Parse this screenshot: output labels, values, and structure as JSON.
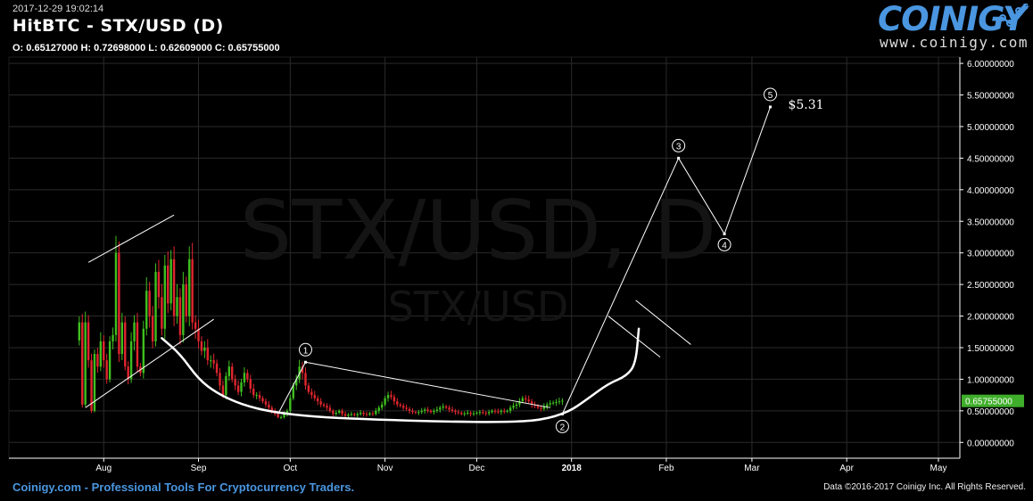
{
  "header": {
    "timestamp": "2017-12-29 19:02:14",
    "title": "HitBTC - STX/USD (D)",
    "ohlc": "O: 0.65127000 H: 0.72698000 L: 0.62609000 C: 0.65755000"
  },
  "logo": {
    "name": "COINIGY",
    "url": "www.coinigy.com",
    "icon": "trend-line-icon"
  },
  "watermark": {
    "line1": "STX/USD, D",
    "line2": "STX/USD"
  },
  "footer": {
    "left": "Coinigy.com - Professional Tools For Cryptocurrency Traders.",
    "right": "Data ©2016-2017 Coinigy Inc. All Rights Reserved."
  },
  "colors": {
    "up": "#3fbf1f",
    "down": "#e0262e",
    "grid": "#2a2a2a",
    "price_tag": "#3fae2a",
    "logo": "#4a96e0"
  },
  "chart_data": {
    "type": "candlestick",
    "title": "HitBTC - STX/USD (D)",
    "xlabel": "",
    "ylabel": "",
    "ylim": [
      -0.25,
      6.1
    ],
    "grid": true,
    "y_ticks": [
      "0.00000000",
      "0.50000000",
      "1.00000000",
      "1.50000000",
      "2.00000000",
      "2.50000000",
      "3.00000000",
      "3.50000000",
      "4.00000000",
      "4.50000000",
      "5.00000000",
      "5.50000000",
      "6.00000000"
    ],
    "x_ticks": [
      {
        "label": "Aug",
        "date": "2017-08-01"
      },
      {
        "label": "Sep",
        "date": "2017-09-01"
      },
      {
        "label": "Oct",
        "date": "2017-10-01"
      },
      {
        "label": "Nov",
        "date": "2017-11-01"
      },
      {
        "label": "Dec",
        "date": "2017-12-01"
      },
      {
        "label": "2018",
        "date": "2018-01-01"
      },
      {
        "label": "Feb",
        "date": "2018-02-01"
      },
      {
        "label": "Mar",
        "date": "2018-03-01"
      },
      {
        "label": "Apr",
        "date": "2018-04-01"
      },
      {
        "label": "May",
        "date": "2018-05-01"
      }
    ],
    "xlim": [
      "2017-07-01",
      "2018-05-08"
    ],
    "last_price": "0.65755000",
    "price_series": [
      [
        "2017-07-24",
        1.9
      ],
      [
        "2017-07-25",
        0.6
      ],
      [
        "2017-07-26",
        1.9
      ],
      [
        "2017-07-27",
        1.3
      ],
      [
        "2017-07-28",
        0.5
      ],
      [
        "2017-07-29",
        1.4
      ],
      [
        "2017-07-30",
        1.2
      ],
      [
        "2017-07-31",
        1.6
      ],
      [
        "2017-08-01",
        1.3
      ],
      [
        "2017-08-02",
        1.0
      ],
      [
        "2017-08-03",
        1.6
      ],
      [
        "2017-08-04",
        1.7
      ],
      [
        "2017-08-05",
        3.0
      ],
      [
        "2017-08-06",
        1.4
      ],
      [
        "2017-08-07",
        1.9
      ],
      [
        "2017-08-08",
        1.2
      ],
      [
        "2017-08-09",
        1.0
      ],
      [
        "2017-08-10",
        1.6
      ],
      [
        "2017-08-11",
        1.9
      ],
      [
        "2017-08-12",
        1.2
      ],
      [
        "2017-08-13",
        1.1
      ],
      [
        "2017-08-14",
        1.8
      ],
      [
        "2017-08-15",
        2.4
      ],
      [
        "2017-08-16",
        2.0
      ],
      [
        "2017-08-17",
        1.6
      ],
      [
        "2017-08-18",
        2.7
      ],
      [
        "2017-08-19",
        2.3
      ],
      [
        "2017-08-20",
        1.8
      ],
      [
        "2017-08-21",
        2.8
      ],
      [
        "2017-08-22",
        2.2
      ],
      [
        "2017-08-23",
        2.9
      ],
      [
        "2017-08-24",
        2.0
      ],
      [
        "2017-08-25",
        2.3
      ],
      [
        "2017-08-26",
        1.7
      ],
      [
        "2017-08-27",
        2.5
      ],
      [
        "2017-08-28",
        2.0
      ],
      [
        "2017-08-29",
        2.9
      ],
      [
        "2017-08-30",
        1.9
      ],
      [
        "2017-08-31",
        1.8
      ],
      [
        "2017-09-01",
        1.6
      ],
      [
        "2017-09-02",
        1.45
      ],
      [
        "2017-09-03",
        1.5
      ],
      [
        "2017-09-04",
        1.3
      ],
      [
        "2017-09-05",
        1.3
      ],
      [
        "2017-09-06",
        1.25
      ],
      [
        "2017-09-07",
        1.1
      ],
      [
        "2017-09-08",
        0.9
      ],
      [
        "2017-09-09",
        0.75
      ],
      [
        "2017-09-10",
        1.05
      ],
      [
        "2017-09-11",
        1.2
      ],
      [
        "2017-09-12",
        1.0
      ],
      [
        "2017-09-13",
        0.9
      ],
      [
        "2017-09-14",
        0.8
      ],
      [
        "2017-09-15",
        0.95
      ],
      [
        "2017-09-16",
        1.1
      ],
      [
        "2017-09-17",
        1.0
      ],
      [
        "2017-09-18",
        0.85
      ],
      [
        "2017-09-19",
        0.75
      ],
      [
        "2017-09-20",
        0.75
      ],
      [
        "2017-09-21",
        0.7
      ],
      [
        "2017-09-22",
        0.65
      ],
      [
        "2017-09-23",
        0.6
      ],
      [
        "2017-09-24",
        0.55
      ],
      [
        "2017-09-25",
        0.5
      ],
      [
        "2017-09-26",
        0.45
      ],
      [
        "2017-09-27",
        0.4
      ],
      [
        "2017-09-28",
        0.4
      ],
      [
        "2017-09-29",
        0.45
      ],
      [
        "2017-09-30",
        0.5
      ],
      [
        "2017-10-01",
        0.7
      ],
      [
        "2017-10-02",
        0.9
      ],
      [
        "2017-10-03",
        1.0
      ],
      [
        "2017-10-04",
        1.2
      ],
      [
        "2017-10-05",
        1.1
      ],
      [
        "2017-10-06",
        0.9
      ],
      [
        "2017-10-07",
        0.8
      ],
      [
        "2017-10-08",
        0.75
      ],
      [
        "2017-10-09",
        0.7
      ],
      [
        "2017-10-10",
        0.65
      ],
      [
        "2017-10-11",
        0.6
      ],
      [
        "2017-10-12",
        0.58
      ],
      [
        "2017-10-13",
        0.55
      ],
      [
        "2017-10-14",
        0.5
      ],
      [
        "2017-10-15",
        0.45
      ],
      [
        "2017-10-16",
        0.47
      ],
      [
        "2017-10-17",
        0.5
      ],
      [
        "2017-10-18",
        0.45
      ],
      [
        "2017-10-19",
        0.42
      ],
      [
        "2017-10-20",
        0.44
      ],
      [
        "2017-10-21",
        0.45
      ],
      [
        "2017-10-22",
        0.43
      ],
      [
        "2017-10-23",
        0.45
      ],
      [
        "2017-10-24",
        0.47
      ],
      [
        "2017-10-25",
        0.45
      ],
      [
        "2017-10-26",
        0.44
      ],
      [
        "2017-10-27",
        0.46
      ],
      [
        "2017-10-28",
        0.45
      ],
      [
        "2017-10-29",
        0.5
      ],
      [
        "2017-10-30",
        0.55
      ],
      [
        "2017-10-31",
        0.6
      ],
      [
        "2017-11-01",
        0.7
      ],
      [
        "2017-11-02",
        0.75
      ],
      [
        "2017-11-03",
        0.72
      ],
      [
        "2017-11-04",
        0.65
      ],
      [
        "2017-11-05",
        0.6
      ],
      [
        "2017-11-06",
        0.58
      ],
      [
        "2017-11-07",
        0.55
      ],
      [
        "2017-11-08",
        0.53
      ],
      [
        "2017-11-09",
        0.5
      ],
      [
        "2017-11-10",
        0.48
      ],
      [
        "2017-11-11",
        0.47
      ],
      [
        "2017-11-12",
        0.48
      ],
      [
        "2017-11-13",
        0.5
      ],
      [
        "2017-11-14",
        0.52
      ],
      [
        "2017-11-15",
        0.5
      ],
      [
        "2017-11-16",
        0.48
      ],
      [
        "2017-11-17",
        0.5
      ],
      [
        "2017-11-18",
        0.52
      ],
      [
        "2017-11-19",
        0.55
      ],
      [
        "2017-11-20",
        0.57
      ],
      [
        "2017-11-21",
        0.55
      ],
      [
        "2017-11-22",
        0.52
      ],
      [
        "2017-11-23",
        0.5
      ],
      [
        "2017-11-24",
        0.48
      ],
      [
        "2017-11-25",
        0.47
      ],
      [
        "2017-11-26",
        0.45
      ],
      [
        "2017-11-27",
        0.46
      ],
      [
        "2017-11-28",
        0.47
      ],
      [
        "2017-11-29",
        0.45
      ],
      [
        "2017-11-30",
        0.46
      ],
      [
        "2017-12-01",
        0.47
      ],
      [
        "2017-12-02",
        0.48
      ],
      [
        "2017-12-03",
        0.47
      ],
      [
        "2017-12-04",
        0.46
      ],
      [
        "2017-12-05",
        0.48
      ],
      [
        "2017-12-06",
        0.5
      ],
      [
        "2017-12-07",
        0.49
      ],
      [
        "2017-12-08",
        0.48
      ],
      [
        "2017-12-09",
        0.5
      ],
      [
        "2017-12-10",
        0.49
      ],
      [
        "2017-12-11",
        0.5
      ],
      [
        "2017-12-12",
        0.55
      ],
      [
        "2017-12-13",
        0.58
      ],
      [
        "2017-12-14",
        0.6
      ],
      [
        "2017-12-15",
        0.65
      ],
      [
        "2017-12-16",
        0.7
      ],
      [
        "2017-12-17",
        0.68
      ],
      [
        "2017-12-18",
        0.65
      ],
      [
        "2017-12-19",
        0.6
      ],
      [
        "2017-12-20",
        0.58
      ],
      [
        "2017-12-21",
        0.55
      ],
      [
        "2017-12-22",
        0.53
      ],
      [
        "2017-12-23",
        0.57
      ],
      [
        "2017-12-24",
        0.6
      ],
      [
        "2017-12-25",
        0.62
      ],
      [
        "2017-12-26",
        0.63
      ],
      [
        "2017-12-27",
        0.64
      ],
      [
        "2017-12-28",
        0.65
      ],
      [
        "2017-12-29",
        0.66
      ]
    ],
    "wave_points": [
      {
        "label": "1",
        "date": "2017-10-06",
        "price": 1.27
      },
      {
        "label": "2",
        "date": "2017-12-29",
        "price": 0.45
      },
      {
        "label": "3",
        "date": "2018-02-05",
        "price": 4.5
      },
      {
        "label": "4",
        "date": "2018-02-20",
        "price": 3.3
      },
      {
        "label": "5",
        "date": "2018-03-07",
        "price": 5.31
      }
    ],
    "target_label": "$5.31",
    "trendlines": [
      [
        [
          "2017-07-27",
          2.85
        ],
        [
          "2017-08-24",
          3.6
        ]
      ],
      [
        [
          "2017-07-26",
          0.55
        ],
        [
          "2017-09-06",
          1.95
        ]
      ],
      [
        [
          "2017-10-06",
          1.27
        ],
        [
          "2017-12-25",
          0.55
        ]
      ],
      [
        [
          "2017-09-27",
          0.45
        ],
        [
          "2017-10-06",
          1.27
        ]
      ],
      [
        [
          "2018-01-13",
          2.0
        ],
        [
          "2018-01-30",
          1.35
        ]
      ],
      [
        [
          "2018-01-22",
          2.25
        ],
        [
          "2018-02-09",
          1.55
        ]
      ]
    ],
    "cup_curve": [
      [
        "2017-08-20",
        1.65
      ],
      [
        "2017-08-26",
        1.4
      ],
      [
        "2017-09-01",
        1.0
      ],
      [
        "2017-09-07",
        0.78
      ],
      [
        "2017-09-15",
        0.6
      ],
      [
        "2017-09-25",
        0.48
      ],
      [
        "2017-10-10",
        0.4
      ],
      [
        "2017-10-30",
        0.36
      ],
      [
        "2017-11-20",
        0.33
      ],
      [
        "2017-12-10",
        0.32
      ],
      [
        "2017-12-22",
        0.35
      ],
      [
        "2017-12-31",
        0.48
      ],
      [
        "2018-01-06",
        0.68
      ],
      [
        "2018-01-13",
        0.93
      ],
      [
        "2018-01-19",
        1.05
      ],
      [
        "2018-01-22",
        1.25
      ],
      [
        "2018-01-23",
        1.8
      ]
    ]
  }
}
